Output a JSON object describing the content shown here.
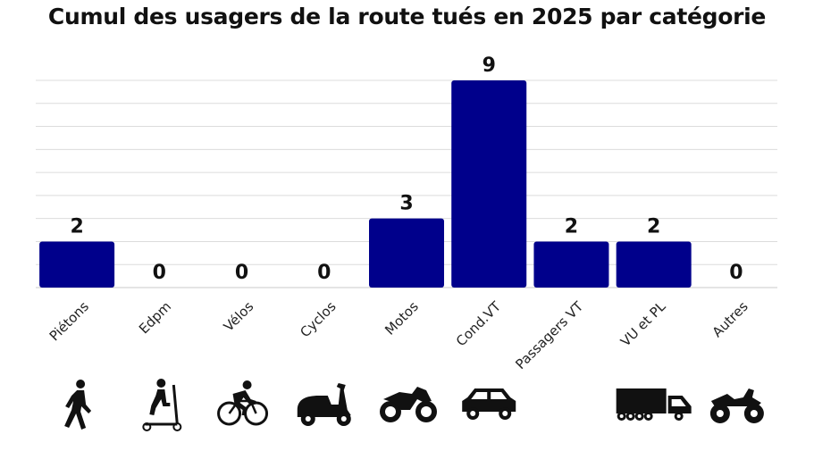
{
  "chart_data": {
    "type": "bar",
    "title": "Cumul des usagers de la route tués en 2025 par catégorie",
    "xlabel": "",
    "ylabel": "",
    "categories": [
      "Piétons",
      "Edpm",
      "Vélos",
      "Cyclos",
      "Motos",
      "Cond.VT",
      "Passagers VT",
      "VU et PL",
      "Autres"
    ],
    "values": [
      2,
      0,
      0,
      0,
      3,
      9,
      2,
      2,
      0
    ],
    "ylim": [
      0,
      9
    ],
    "grid": true,
    "bar_color": "#00008b",
    "category_icons": [
      "pedestrian-icon",
      "scooter-icon",
      "bicycle-icon",
      "moped-icon",
      "motorcycle-icon",
      "car-icon",
      "car-passenger-icon",
      "truck-icon",
      "quad-icon"
    ]
  }
}
